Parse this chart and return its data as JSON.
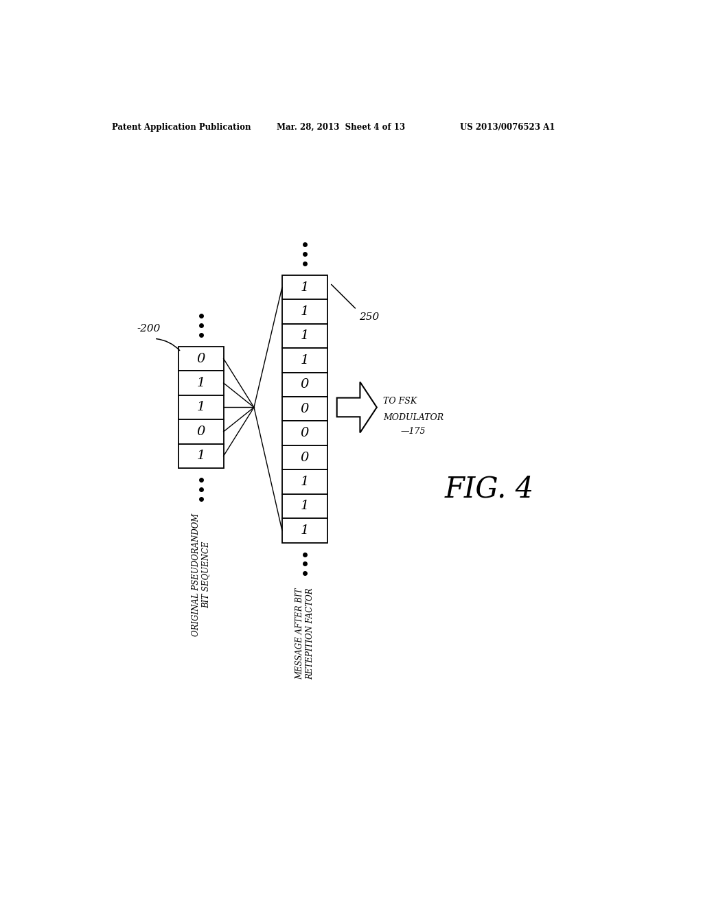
{
  "bg_color": "#ffffff",
  "header_left": "Patent Application Publication",
  "header_mid": "Mar. 28, 2013  Sheet 4 of 13",
  "header_right": "US 2013/0076523 A1",
  "left_bits": [
    "0",
    "1",
    "1",
    "0",
    "1"
  ],
  "left_label": "-200",
  "right_bits": [
    "1",
    "1",
    "1",
    "1",
    "0",
    "0",
    "0",
    "0",
    "1",
    "1",
    "1"
  ],
  "right_label": "250",
  "label_original_line1": "ORIGINAL PSEUDORANDOM",
  "label_original_line2": "BIT SEQUENCE",
  "label_message_line1": "MESSAGE AFTER BIT",
  "label_message_line2": "RETEPITION FACTOR",
  "label_fsk_line1": "TO FSK",
  "label_fsk_line2": "MODULATOR",
  "label_175": "175",
  "fig_label": "FIG. 4"
}
